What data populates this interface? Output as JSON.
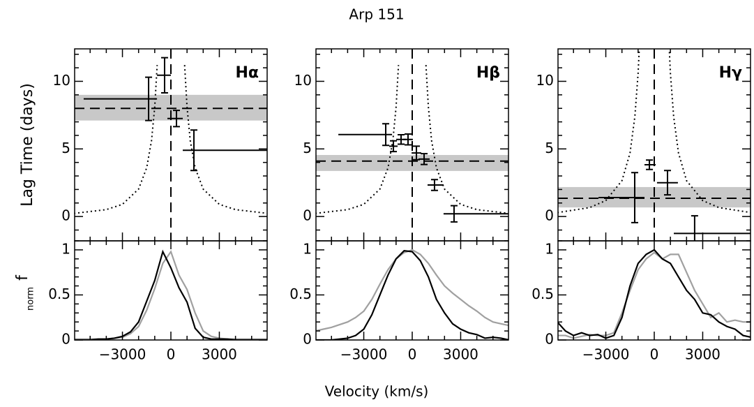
{
  "figure": {
    "title": "Arp 151",
    "xlabel": "Velocity (km/s)"
  },
  "chart_data": [
    {
      "type": "errorbar",
      "label": "Hα",
      "ylabel": "Lag Time (days)",
      "xlim": [
        -5960,
        5960
      ],
      "ylim": [
        -1.8,
        12.4
      ],
      "xticks": [
        -3000,
        0,
        3000
      ],
      "xticks_minor": [
        -5000,
        -4000,
        -2000,
        -1000,
        1000,
        2000,
        4000,
        5000
      ],
      "yticks": [
        0,
        5,
        10
      ],
      "yticks_minor": [
        -1,
        1,
        2,
        3,
        4,
        6,
        7,
        8,
        9,
        11,
        12
      ],
      "mean": 8.0,
      "band": [
        7.1,
        9.0
      ],
      "band_color": "#c8c8c8",
      "points": [
        {
          "x": -1380,
          "y": 8.7,
          "xmin": -5400,
          "xmax": -860,
          "yerr": 1.6
        },
        {
          "x": -390,
          "y": 10.45,
          "xmin": -860,
          "xmax": 0,
          "yerr": 1.3
        },
        {
          "x": 345,
          "y": 7.25,
          "xmin": -215,
          "xmax": 735,
          "yerr": 0.6
        },
        {
          "x": 1425,
          "y": 4.9,
          "xmin": 735,
          "xmax": 5960,
          "yerr": 1.5
        }
      ],
      "envelope": {
        "x": [
          -6000,
          -4000,
          -3000,
          -2000,
          -1500,
          -1200,
          -1000,
          -850,
          0,
          850,
          1000,
          1200,
          1500,
          2000,
          3000,
          4000,
          6000
        ],
        "y": [
          0.23,
          0.51,
          0.9,
          2.03,
          3.6,
          5.6,
          8.1,
          11.2,
          null,
          11.2,
          8.1,
          5.6,
          3.6,
          2.03,
          0.9,
          0.51,
          0.23
        ]
      }
    },
    {
      "type": "line",
      "ylabel": "f",
      "ylabel_sub": "norm",
      "xlim": [
        -5960,
        5960
      ],
      "ylim": [
        0,
        1.1
      ],
      "xticks": [
        {
          "value": -3000,
          "label": "−3000"
        },
        0,
        3000
      ],
      "xticks_minor": [
        -5000,
        -4000,
        -2000,
        -1000,
        1000,
        2000,
        4000,
        5000
      ],
      "yticks": [
        0,
        0.5,
        1
      ],
      "yticks_minor": [
        0.1,
        0.2,
        0.3,
        0.4,
        0.6,
        0.7,
        0.8,
        0.9,
        1.1
      ],
      "x": [
        -6000,
        -5500,
        -5000,
        -4500,
        -4000,
        -3500,
        -3000,
        -2500,
        -2000,
        -1500,
        -1000,
        -500,
        0,
        500,
        1000,
        1500,
        2000,
        2500,
        3000,
        3500,
        4000,
        4500,
        5000,
        5500,
        6000
      ],
      "series": [
        {
          "color": "#a0a0a0",
          "values": [
            0.01,
            0.01,
            0.01,
            0.01,
            0.01,
            0.02,
            0.03,
            0.07,
            0.15,
            0.33,
            0.57,
            0.85,
            0.98,
            0.72,
            0.56,
            0.3,
            0.1,
            0.04,
            0.02,
            0.01,
            0.01,
            0.01,
            0.01,
            0.01,
            0.01
          ]
        },
        {
          "color": "#000000",
          "values": [
            0,
            0,
            0,
            0.01,
            0.01,
            0.02,
            0.04,
            0.09,
            0.2,
            0.43,
            0.66,
            0.98,
            0.8,
            0.58,
            0.42,
            0.13,
            0.03,
            0.01,
            0.01,
            0.01,
            0,
            0,
            0,
            0,
            0
          ]
        }
      ]
    },
    {
      "type": "errorbar",
      "label": "Hβ",
      "xlim": [
        -5960,
        5960
      ],
      "ylim": [
        -1.8,
        12.4
      ],
      "xticks": [
        -3000,
        0,
        3000
      ],
      "xticks_minor": [
        -5000,
        -4000,
        -2000,
        -1000,
        1000,
        2000,
        4000,
        5000
      ],
      "yticks": [
        0,
        5,
        10
      ],
      "yticks_minor": [
        -1,
        1,
        2,
        3,
        4,
        6,
        7,
        8,
        9,
        11,
        12
      ],
      "mean": 4.1,
      "band": [
        3.37,
        4.55
      ],
      "band_color": "#c8c8c8",
      "points": [
        {
          "x": -1640,
          "y": 6.06,
          "xmin": -4575,
          "xmax": -1250,
          "yerr": 0.8
        },
        {
          "x": -1165,
          "y": 5.2,
          "xmin": -1425,
          "xmax": -905,
          "yerr": 0.4
        },
        {
          "x": -690,
          "y": 5.7,
          "xmin": -990,
          "xmax": -390,
          "yerr": 0.35
        },
        {
          "x": -260,
          "y": 5.7,
          "xmin": -560,
          "xmax": 40,
          "yerr": 0.4
        },
        {
          "x": 260,
          "y": 4.7,
          "xmin": -40,
          "xmax": 560,
          "yerr": 0.5
        },
        {
          "x": 735,
          "y": 4.25,
          "xmin": 390,
          "xmax": 1080,
          "yerr": 0.4
        },
        {
          "x": 1380,
          "y": 2.33,
          "xmin": 950,
          "xmax": 1940,
          "yerr": 0.4
        },
        {
          "x": 2590,
          "y": 0.2,
          "xmin": 1940,
          "xmax": 5960,
          "yerr": 0.6
        }
      ],
      "envelope": {
        "x": [
          -6000,
          -4000,
          -3000,
          -2000,
          -1500,
          -1200,
          -1000,
          -850,
          0,
          850,
          1000,
          1200,
          1500,
          2000,
          3000,
          4000,
          6000
        ],
        "y": [
          0.23,
          0.51,
          0.9,
          2.03,
          3.6,
          5.6,
          8.1,
          11.2,
          null,
          11.2,
          8.1,
          5.6,
          3.6,
          2.03,
          0.9,
          0.51,
          0.23
        ]
      }
    },
    {
      "type": "line",
      "xlim": [
        -5960,
        5960
      ],
      "ylim": [
        0,
        1.1
      ],
      "xticks": [
        {
          "value": -3000,
          "label": "−3000"
        },
        0,
        3000
      ],
      "xticks_minor": [
        -5000,
        -4000,
        -2000,
        -1000,
        1000,
        2000,
        4000,
        5000
      ],
      "yticks": [
        0,
        0.5,
        1
      ],
      "yticks_minor": [
        0.1,
        0.2,
        0.3,
        0.4,
        0.6,
        0.7,
        0.8,
        0.9,
        1.1
      ],
      "x": [
        -6000,
        -5500,
        -5000,
        -4500,
        -4000,
        -3500,
        -3000,
        -2500,
        -2000,
        -1500,
        -1000,
        -500,
        0,
        500,
        1000,
        1500,
        2000,
        2500,
        3000,
        3500,
        4000,
        4500,
        5000,
        5500,
        6000
      ],
      "series": [
        {
          "color": "#a0a0a0",
          "values": [
            0.1,
            0.12,
            0.14,
            0.17,
            0.2,
            0.25,
            0.32,
            0.45,
            0.62,
            0.78,
            0.9,
            0.97,
            1.0,
            0.95,
            0.85,
            0.72,
            0.6,
            0.52,
            0.45,
            0.38,
            0.32,
            0.25,
            0.2,
            0.18,
            0.16
          ]
        },
        {
          "color": "#000000",
          "values": [
            0,
            0,
            0,
            0.01,
            0.02,
            0.05,
            0.12,
            0.28,
            0.5,
            0.72,
            0.9,
            0.99,
            0.98,
            0.88,
            0.7,
            0.45,
            0.3,
            0.18,
            0.12,
            0.08,
            0.06,
            0.02,
            0.03,
            0.02,
            0
          ]
        }
      ]
    },
    {
      "type": "errorbar",
      "label": "Hγ",
      "xlim": [
        -5960,
        5960
      ],
      "ylim": [
        -1.8,
        12.4
      ],
      "xticks": [
        -3000,
        0,
        3000
      ],
      "xticks_minor": [
        -5000,
        -4000,
        -2000,
        -1000,
        1000,
        2000,
        4000,
        5000
      ],
      "yticks": [
        0,
        5,
        10
      ],
      "yticks_minor": [
        -1,
        1,
        2,
        3,
        4,
        6,
        7,
        8,
        9,
        11,
        12
      ],
      "mean": 1.35,
      "band": [
        0.67,
        2.18
      ],
      "band_color": "#c8c8c8",
      "points": [
        {
          "x": -1210,
          "y": 1.4,
          "xmin": -3450,
          "xmax": -605,
          "yerr": 1.85
        },
        {
          "x": -300,
          "y": 3.83,
          "xmin": -605,
          "xmax": 85,
          "yerr": 0.35
        },
        {
          "x": 820,
          "y": 2.5,
          "xmin": 170,
          "xmax": 1465,
          "yerr": 0.9
        },
        {
          "x": 2500,
          "y": -1.25,
          "xmin": 1210,
          "xmax": 5960,
          "yerr": 1.3
        }
      ],
      "envelope": {
        "x": [
          -6000,
          -4000,
          -3000,
          -2000,
          -1500,
          -1200,
          -1000,
          -900,
          0,
          900,
          1000,
          1200,
          1500,
          2000,
          3000,
          4000,
          6000
        ],
        "y": [
          0.29,
          0.66,
          1.18,
          2.65,
          4.7,
          7.4,
          10.6,
          13.1,
          null,
          13.1,
          10.6,
          7.4,
          4.7,
          2.65,
          1.18,
          0.66,
          0.29
        ]
      }
    },
    {
      "type": "line",
      "xlim": [
        -5960,
        5960
      ],
      "ylim": [
        0,
        1.1
      ],
      "xticks": [
        {
          "value": -3000,
          "label": "−3000"
        },
        0,
        3000
      ],
      "xticks_minor": [
        -5000,
        -4000,
        -2000,
        -1000,
        1000,
        2000,
        4000,
        5000
      ],
      "yticks": [
        0,
        0.5,
        1
      ],
      "yticks_minor": [
        0.1,
        0.2,
        0.3,
        0.4,
        0.6,
        0.7,
        0.8,
        0.9,
        1.1
      ],
      "x": [
        -6000,
        -5500,
        -5000,
        -4500,
        -4000,
        -3500,
        -3000,
        -2500,
        -2000,
        -1500,
        -1000,
        -500,
        0,
        500,
        1000,
        1500,
        2000,
        2500,
        3000,
        3500,
        4000,
        4500,
        5000,
        5500,
        6000
      ],
      "series": [
        {
          "color": "#a0a0a0",
          "values": [
            0.05,
            0.05,
            0.02,
            0.04,
            0.06,
            0.05,
            0.05,
            0.08,
            0.3,
            0.55,
            0.78,
            0.9,
            0.97,
            0.9,
            0.95,
            0.95,
            0.75,
            0.55,
            0.4,
            0.25,
            0.3,
            0.2,
            0.22,
            0.2,
            0.2
          ]
        },
        {
          "color": "#000000",
          "values": [
            0.2,
            0.1,
            0.05,
            0.08,
            0.05,
            0.06,
            0.02,
            0.05,
            0.25,
            0.6,
            0.85,
            0.95,
            1.0,
            0.9,
            0.85,
            0.7,
            0.55,
            0.45,
            0.3,
            0.28,
            0.2,
            0.15,
            0.12,
            0.05,
            0.03
          ]
        }
      ]
    }
  ]
}
